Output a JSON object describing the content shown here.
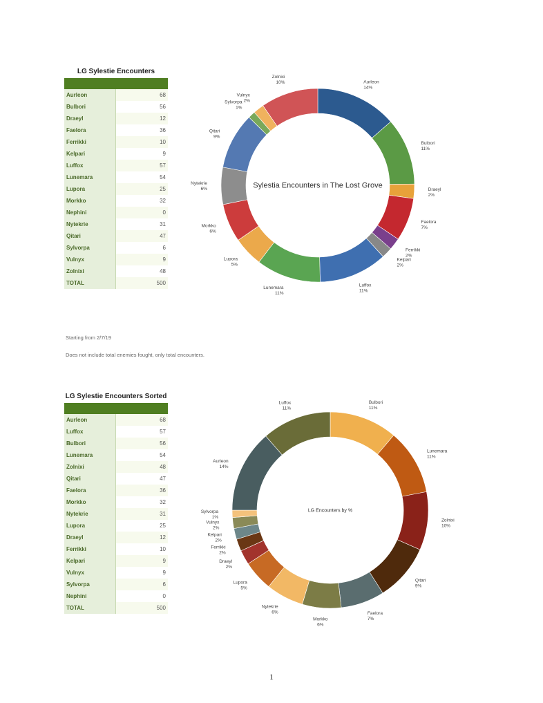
{
  "table1": {
    "title": "LG Sylestie Encounters",
    "rows": [
      {
        "name": "Aurleon",
        "value": "68"
      },
      {
        "name": "Bulbori",
        "value": "56"
      },
      {
        "name": "Draeyl",
        "value": "12"
      },
      {
        "name": "Faelora",
        "value": "36"
      },
      {
        "name": "Ferrikki",
        "value": "10"
      },
      {
        "name": "Kelpari",
        "value": "9"
      },
      {
        "name": "Luffox",
        "value": "57"
      },
      {
        "name": "Lunemara",
        "value": "54"
      },
      {
        "name": "Lupora",
        "value": "25"
      },
      {
        "name": "Morkko",
        "value": "32"
      },
      {
        "name": "Nephini",
        "value": "0"
      },
      {
        "name": "Nytekrie",
        "value": "31"
      },
      {
        "name": "Qitari",
        "value": "47"
      },
      {
        "name": "Sylvorpa",
        "value": "6"
      },
      {
        "name": "Vulnyx",
        "value": "9"
      },
      {
        "name": "Zolnixi",
        "value": "48"
      },
      {
        "name": "TOTAL",
        "value": "500"
      }
    ]
  },
  "table2": {
    "title": "LG Sylestie Encounters Sorted",
    "rows": [
      {
        "name": "Aurleon",
        "value": "68"
      },
      {
        "name": "Luffox",
        "value": "57"
      },
      {
        "name": "Bulbori",
        "value": "56"
      },
      {
        "name": "Lunemara",
        "value": "54"
      },
      {
        "name": "Zolnixi",
        "value": "48"
      },
      {
        "name": "Qitari",
        "value": "47"
      },
      {
        "name": "Faelora",
        "value": "36"
      },
      {
        "name": "Morkko",
        "value": "32"
      },
      {
        "name": "Nytekrie",
        "value": "31"
      },
      {
        "name": "Lupora",
        "value": "25"
      },
      {
        "name": "Draeyl",
        "value": "12"
      },
      {
        "name": "Ferrikki",
        "value": "10"
      },
      {
        "name": "Kelpari",
        "value": "9"
      },
      {
        "name": "Vulnyx",
        "value": "9"
      },
      {
        "name": "Sylvorpa",
        "value": "6"
      },
      {
        "name": "Nephini",
        "value": "0"
      },
      {
        "name": "TOTAL",
        "value": "500"
      }
    ]
  },
  "notes": {
    "line1": "Starting from 2/7/19",
    "line2": "Does not include total enemies fought, only total encounters."
  },
  "page_number": "1",
  "chart_data": [
    {
      "type": "pie",
      "title": "Sylestia Encounters in The Lost Grove",
      "categories": [
        "Aurleon",
        "Bulbori",
        "Draeyl",
        "Faelora",
        "Ferrikki",
        "Kelpari",
        "Luffox",
        "Lunemara",
        "Lupora",
        "Morkko",
        "Nephini",
        "Nytekrie",
        "Qitari",
        "Sylvorpa",
        "Vulnyx",
        "Zolnixi"
      ],
      "values": [
        68,
        56,
        12,
        36,
        10,
        9,
        57,
        54,
        25,
        32,
        0,
        31,
        47,
        6,
        9,
        48
      ],
      "percent_labels": [
        "14%",
        "11%",
        "2%",
        "7%",
        "2%",
        "2%",
        "11%",
        "11%",
        "5%",
        "6%",
        "",
        "6%",
        "9%",
        "1%",
        "2%",
        "10%"
      ],
      "colors": [
        "#2c5a8f",
        "#5b9a45",
        "#e8a23a",
        "#c4282f",
        "#7a3f8c",
        "#888888",
        "#3f6fb0",
        "#5aa552",
        "#eba94b",
        "#cc3c3c",
        "#999999",
        "#8d8d8d",
        "#5479b2",
        "#79a85a",
        "#f0b25e",
        "#d05456"
      ],
      "legend": "none"
    },
    {
      "type": "pie",
      "title": "LG Encounters by %",
      "categories": [
        "Bulbori",
        "Lunemara",
        "Zolnixi",
        "Qitari",
        "Faelora",
        "Morkko",
        "Nytekrie",
        "Lupora",
        "Draeyl",
        "Ferrikki",
        "Kelpari",
        "Vulnyx",
        "Sylvorpa",
        "Nephini",
        "Aurleon",
        "Luffox"
      ],
      "values": [
        56,
        54,
        48,
        47,
        36,
        32,
        31,
        25,
        12,
        10,
        9,
        9,
        6,
        0,
        68,
        57
      ],
      "percent_labels": [
        "11%",
        "11%",
        "10%",
        "9%",
        "7%",
        "6%",
        "6%",
        "5%",
        "2%",
        "2%",
        "2%",
        "2%",
        "1%",
        "",
        "14%",
        "11%"
      ],
      "colors": [
        "#f0b04e",
        "#bf5a13",
        "#8a2219",
        "#4f2a0c",
        "#5a6d6f",
        "#7c7c46",
        "#f2b865",
        "#c76a24",
        "#a2332c",
        "#6a3714",
        "#6d878a",
        "#8a8a57",
        "#f4c27c",
        "#cccccc",
        "#495d60",
        "#6a6c38"
      ],
      "legend": "none"
    }
  ]
}
